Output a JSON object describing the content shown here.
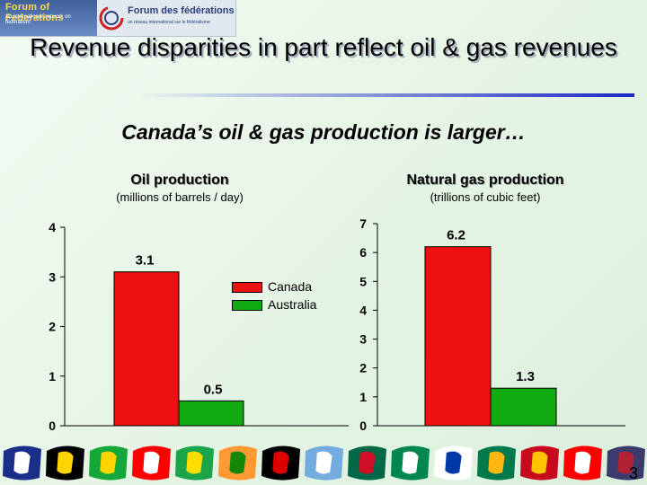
{
  "logo": {
    "left_name": "Forum of Federations",
    "left_tagline": "An international network on federalism",
    "right_name": "Forum des fédérations",
    "right_tagline": "un réseau international sur le fédéralisme"
  },
  "slide": {
    "title": "Revenue disparities in part reflect oil & gas revenues",
    "subtitle": "Canada’s oil & gas production is larger…",
    "page_number": "3"
  },
  "colors": {
    "canada": "#ee1111",
    "australia": "#11aa11",
    "title_rule": "#1e28c8"
  },
  "legend": {
    "items": [
      {
        "label": "Canada",
        "color": "#ee1111"
      },
      {
        "label": "Australia",
        "color": "#11aa11"
      }
    ],
    "placement": "center"
  },
  "chart_data": [
    {
      "type": "bar",
      "title": "Oil production",
      "unit": "(millions of barrels / day)",
      "categories": [
        "Canada",
        "Australia"
      ],
      "values": [
        3.1,
        0.5
      ],
      "value_labels": [
        "3.1",
        "0.5"
      ],
      "ylim": [
        0,
        4
      ],
      "yticks": [
        0,
        1,
        2,
        3,
        4
      ],
      "grid": false
    },
    {
      "type": "bar",
      "title": "Natural gas production",
      "unit": "(trillions of cubic feet)",
      "categories": [
        "Canada",
        "Australia"
      ],
      "values": [
        6.2,
        1.3
      ],
      "value_labels": [
        "6.2",
        "1.3"
      ],
      "ylim": [
        0,
        7
      ],
      "yticks": [
        0,
        1,
        2,
        3,
        4,
        5,
        6,
        7
      ],
      "grid": false
    }
  ],
  "flags_strip": {
    "icons": [
      "australia-flag-icon",
      "belgium-flag-icon",
      "brazil-flag-icon",
      "canada-flag-icon",
      "ethiopia-flag-icon",
      "india-flag-icon",
      "germany-flag-icon",
      "argentina-flag-icon",
      "mexico-flag-icon",
      "nigeria-flag-icon",
      "russia-flag-icon",
      "south-africa-flag-icon",
      "spain-flag-icon",
      "switzerland-flag-icon",
      "usa-flag-icon"
    ]
  }
}
